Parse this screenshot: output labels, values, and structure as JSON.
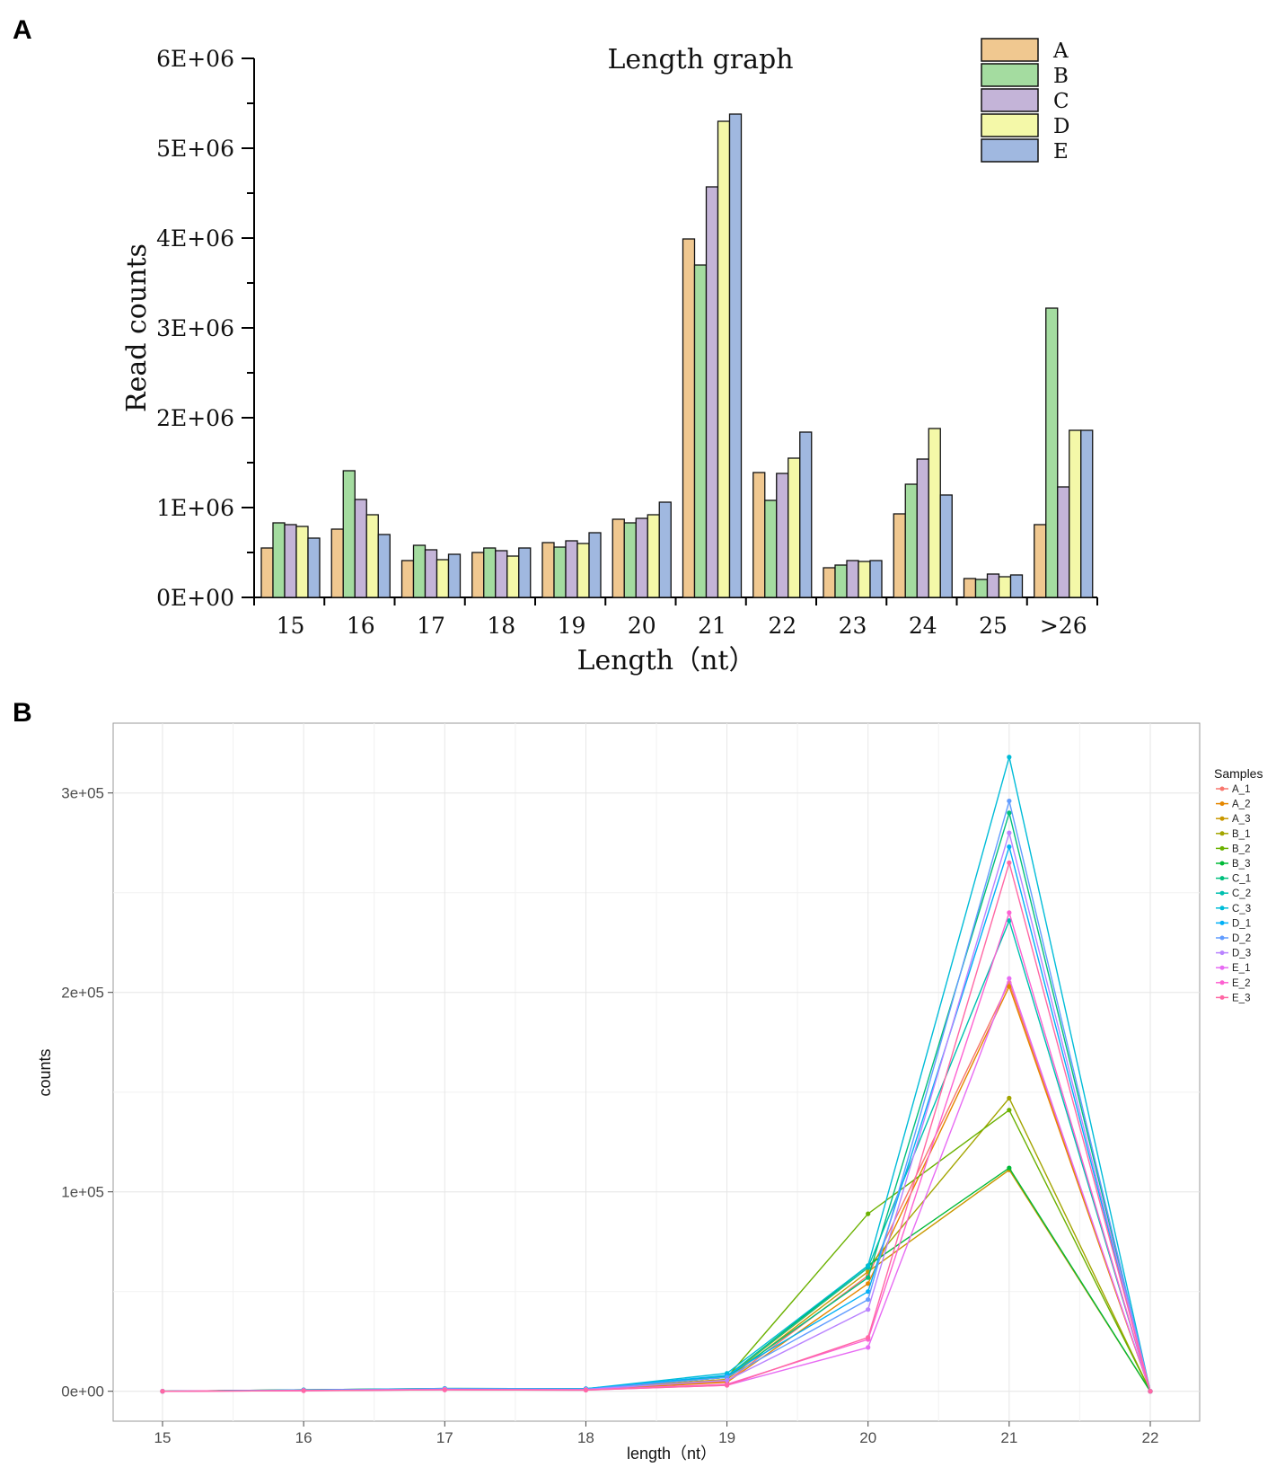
{
  "panels": {
    "a_label": "A",
    "b_label": "B"
  },
  "chart_data": [
    {
      "type": "bar",
      "title": "Length graph",
      "xlabel": "Length（nt）",
      "ylabel": "Read counts",
      "categories": [
        "15",
        "16",
        "17",
        "18",
        "19",
        "20",
        "21",
        "22",
        "23",
        "24",
        "25",
        ">26"
      ],
      "ylim": [
        0,
        6000000
      ],
      "yticks": [
        {
          "value": 0,
          "label": "0E+00"
        },
        {
          "value": 1000000,
          "label": "1E+06"
        },
        {
          "value": 2000000,
          "label": "2E+06"
        },
        {
          "value": 3000000,
          "label": "3E+06"
        },
        {
          "value": 4000000,
          "label": "4E+06"
        },
        {
          "value": 5000000,
          "label": "5E+06"
        },
        {
          "value": 6000000,
          "label": "6E+06"
        }
      ],
      "legend_position": "top-right",
      "series": [
        {
          "name": "A",
          "color": "#f0c890",
          "values": [
            550000,
            760000,
            410000,
            500000,
            610000,
            870000,
            3990000,
            1390000,
            330000,
            930000,
            210000,
            810000
          ]
        },
        {
          "name": "B",
          "color": "#a4dca0",
          "values": [
            830000,
            1410000,
            580000,
            550000,
            560000,
            830000,
            3700000,
            1080000,
            360000,
            1260000,
            200000,
            3220000
          ]
        },
        {
          "name": "C",
          "color": "#c4b4d8",
          "values": [
            810000,
            1090000,
            530000,
            520000,
            630000,
            880000,
            4570000,
            1380000,
            410000,
            1540000,
            260000,
            1230000
          ]
        },
        {
          "name": "D",
          "color": "#f4f8a8",
          "values": [
            790000,
            920000,
            420000,
            460000,
            600000,
            920000,
            5300000,
            1550000,
            400000,
            1880000,
            230000,
            1860000
          ]
        },
        {
          "name": "E",
          "color": "#a0b8e0",
          "values": [
            660000,
            700000,
            480000,
            550000,
            720000,
            1060000,
            5380000,
            1840000,
            410000,
            1140000,
            250000,
            1860000
          ]
        }
      ]
    },
    {
      "type": "line",
      "title": "",
      "xlabel": "length（nt）",
      "ylabel": "counts",
      "x": [
        15,
        16,
        17,
        18,
        19,
        20,
        21,
        22
      ],
      "xticks": [
        "15",
        "16",
        "17",
        "18",
        "19",
        "20",
        "21",
        "22"
      ],
      "xlim": [
        14.65,
        22.35
      ],
      "ylim": [
        -15000,
        335000
      ],
      "yticks": [
        {
          "value": 0,
          "label": "0e+00"
        },
        {
          "value": 100000,
          "label": "1e+05"
        },
        {
          "value": 200000,
          "label": "2e+05"
        },
        {
          "value": 300000,
          "label": "3e+05"
        }
      ],
      "grid": true,
      "legend_title": "Samples",
      "legend_position": "right",
      "series": [
        {
          "name": "A_1",
          "color": "#f8766d",
          "values": [
            0,
            500,
            1000,
            900,
            5000,
            58000,
            205000,
            0
          ]
        },
        {
          "name": "A_2",
          "color": "#e58700",
          "values": [
            0,
            400,
            900,
            800,
            4500,
            54000,
            203000,
            0
          ]
        },
        {
          "name": "A_3",
          "color": "#c99800",
          "values": [
            0,
            500,
            1100,
            1000,
            6000,
            60000,
            111000,
            0
          ]
        },
        {
          "name": "B_1",
          "color": "#a3a500",
          "values": [
            0,
            600,
            1200,
            1100,
            7000,
            62000,
            147000,
            0
          ]
        },
        {
          "name": "B_2",
          "color": "#6bb100",
          "values": [
            0,
            700,
            1300,
            1200,
            7000,
            89000,
            141000,
            0
          ]
        },
        {
          "name": "B_3",
          "color": "#00ba38",
          "values": [
            0,
            700,
            1400,
            1300,
            7500,
            63000,
            112000,
            0
          ]
        },
        {
          "name": "C_1",
          "color": "#00bf7d",
          "values": [
            0,
            600,
            1200,
            1100,
            7000,
            57000,
            290000,
            0
          ]
        },
        {
          "name": "C_2",
          "color": "#00c0af",
          "values": [
            0,
            600,
            1200,
            1100,
            7500,
            62000,
            236000,
            0
          ]
        },
        {
          "name": "C_3",
          "color": "#00bcd8",
          "values": [
            0,
            700,
            1400,
            1300,
            9000,
            63000,
            318000,
            0
          ]
        },
        {
          "name": "D_1",
          "color": "#00b0f6",
          "values": [
            0,
            600,
            1300,
            1200,
            8000,
            50000,
            273000,
            0
          ]
        },
        {
          "name": "D_2",
          "color": "#619cff",
          "values": [
            0,
            600,
            1200,
            1100,
            7000,
            46000,
            296000,
            0
          ]
        },
        {
          "name": "D_3",
          "color": "#b983ff",
          "values": [
            0,
            500,
            1100,
            900,
            5500,
            41000,
            280000,
            0
          ]
        },
        {
          "name": "E_1",
          "color": "#e76bf3",
          "values": [
            0,
            300,
            700,
            600,
            3000,
            22000,
            207000,
            0
          ]
        },
        {
          "name": "E_2",
          "color": "#fd61d1",
          "values": [
            0,
            300,
            800,
            700,
            3500,
            26000,
            240000,
            0
          ]
        },
        {
          "name": "E_3",
          "color": "#ff67a4",
          "values": [
            0,
            300,
            700,
            600,
            3000,
            27000,
            265000,
            0
          ]
        }
      ]
    }
  ]
}
